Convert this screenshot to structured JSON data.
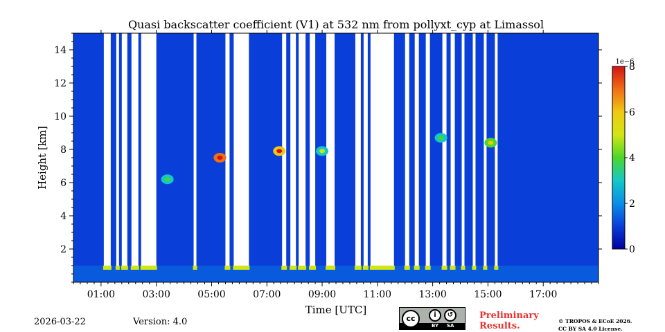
{
  "chart_data": {
    "type": "heatmap",
    "title": "Quasi backscatter coefficient (V1) at 532 nm from pollyxt_cyp at Limassol",
    "xlabel": "Time [UTC]",
    "ylabel": "Height [km]",
    "xlim_hours": [
      0.0,
      19.0
    ],
    "ylim_km": [
      0.0,
      15.0
    ],
    "x_ticks": [
      {
        "value": 1,
        "label": "01:00"
      },
      {
        "value": 3,
        "label": "03:00"
      },
      {
        "value": 5,
        "label": "05:00"
      },
      {
        "value": 7,
        "label": "07:00"
      },
      {
        "value": 9,
        "label": "09:00"
      },
      {
        "value": 11,
        "label": "11:00"
      },
      {
        "value": 13,
        "label": "13:00"
      },
      {
        "value": 15,
        "label": "15:00"
      },
      {
        "value": 17,
        "label": "17:00"
      }
    ],
    "y_ticks": [
      {
        "value": 2,
        "label": "2"
      },
      {
        "value": 4,
        "label": "4"
      },
      {
        "value": 6,
        "label": "6"
      },
      {
        "value": 8,
        "label": "8"
      },
      {
        "value": 10,
        "label": "10"
      },
      {
        "value": 12,
        "label": "12"
      },
      {
        "value": 14,
        "label": "14"
      }
    ],
    "colorbar": {
      "min": 0,
      "max": 8,
      "ticks": [
        {
          "value": 0,
          "label": "0"
        },
        {
          "value": 2,
          "label": "2"
        },
        {
          "value": 4,
          "label": "4"
        },
        {
          "value": 6,
          "label": "6"
        },
        {
          "value": 8,
          "label": "8"
        }
      ],
      "scale_label": "1e−6",
      "colormap": [
        "#0000a0",
        "#0a3ed8",
        "#0a8ee8",
        "#14c8c8",
        "#4bd62a",
        "#d2e614",
        "#f0c814",
        "#f06e14",
        "#d21414"
      ]
    },
    "background_value": 0.8,
    "cloud_gaps": [
      {
        "start": 1.1,
        "end": 1.35,
        "top": 15.0
      },
      {
        "start": 1.55,
        "end": 1.65,
        "top": 15.0
      },
      {
        "start": 1.75,
        "end": 1.95,
        "top": 15.0
      },
      {
        "start": 2.1,
        "end": 2.35,
        "top": 15.0
      },
      {
        "start": 2.45,
        "end": 3.0,
        "top": 15.0
      },
      {
        "start": 4.35,
        "end": 4.45,
        "top": 15.0
      },
      {
        "start": 5.5,
        "end": 5.65,
        "top": 15.0
      },
      {
        "start": 5.8,
        "end": 6.35,
        "top": 15.0
      },
      {
        "start": 7.55,
        "end": 7.7,
        "top": 15.0
      },
      {
        "start": 7.85,
        "end": 8.05,
        "top": 15.0
      },
      {
        "start": 8.15,
        "end": 8.4,
        "top": 15.0
      },
      {
        "start": 8.55,
        "end": 8.75,
        "top": 15.0
      },
      {
        "start": 9.15,
        "end": 9.45,
        "top": 15.0
      },
      {
        "start": 10.2,
        "end": 10.4,
        "top": 15.0
      },
      {
        "start": 10.5,
        "end": 10.65,
        "top": 15.0
      },
      {
        "start": 10.75,
        "end": 11.6,
        "top": 15.0
      },
      {
        "start": 12.0,
        "end": 12.15,
        "top": 15.0
      },
      {
        "start": 12.35,
        "end": 12.5,
        "top": 15.0
      },
      {
        "start": 12.75,
        "end": 12.9,
        "top": 15.0
      },
      {
        "start": 13.35,
        "end": 13.5,
        "top": 15.0
      },
      {
        "start": 13.65,
        "end": 13.8,
        "top": 15.0
      },
      {
        "start": 14.05,
        "end": 14.15,
        "top": 15.0
      },
      {
        "start": 14.45,
        "end": 14.55,
        "top": 15.0
      },
      {
        "start": 14.85,
        "end": 14.95,
        "top": 15.0
      },
      {
        "start": 15.25,
        "end": 15.35,
        "top": 15.0
      }
    ],
    "aerosol_features": [
      {
        "time": 5.3,
        "height": 7.5,
        "value": 7.0
      },
      {
        "time": 7.45,
        "height": 7.9,
        "value": 6.5
      },
      {
        "time": 9.0,
        "height": 7.9,
        "value": 3.5
      },
      {
        "time": 15.1,
        "height": 8.4,
        "value": 4.5
      },
      {
        "time": 3.4,
        "height": 6.2,
        "value": 3.0
      },
      {
        "time": 13.3,
        "height": 8.7,
        "value": 3.0
      }
    ]
  },
  "footer": {
    "date": "2026-03-22",
    "version": "Version: 4.0",
    "license_badge": {
      "cc": "cc",
      "by": "BY",
      "sa": "SA"
    },
    "preliminary_line1": "Preliminary",
    "preliminary_line2": "Results.",
    "copyright_line1": "© TROPOS & ECoE 2026.",
    "copyright_line2": "CC BY SA 4.0 License."
  }
}
